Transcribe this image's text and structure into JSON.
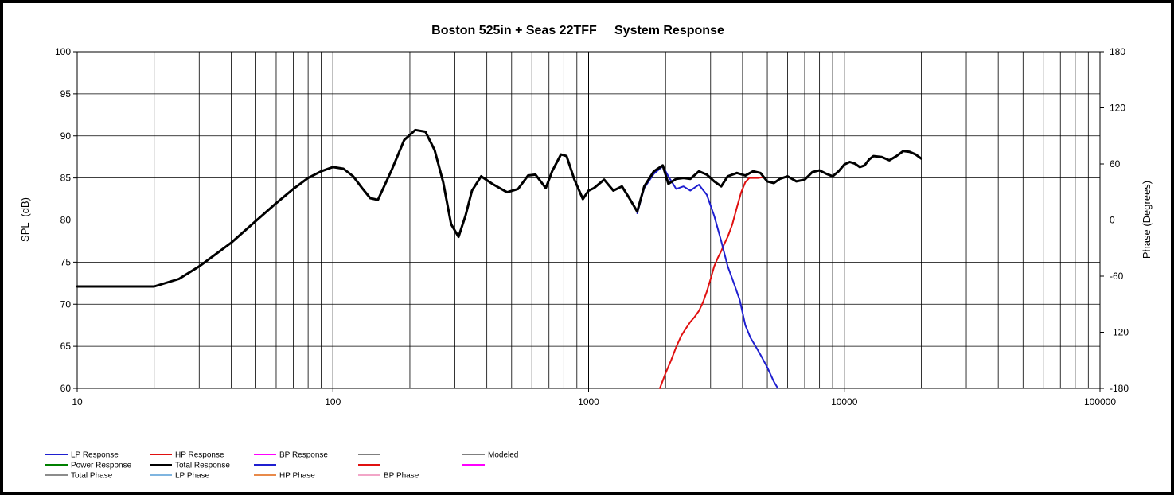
{
  "chart_data": {
    "type": "line",
    "title": "Boston 525in + Seas 22TFF     System Response",
    "xlabel": "",
    "ylabel": "SPL  (dB)",
    "y2label": "Phase (Degrees)",
    "xscale": "log",
    "xlim": [
      10,
      100000
    ],
    "ylim": [
      60,
      100
    ],
    "y2lim": [
      -180,
      180
    ],
    "grid": true,
    "x_ticks": [
      10,
      100,
      1000,
      10000,
      100000
    ],
    "x_tick_labels": [
      "10",
      "100",
      "1000",
      "10000",
      "100000"
    ],
    "y_ticks": [
      60,
      65,
      70,
      75,
      80,
      85,
      90,
      95,
      100
    ],
    "y_tick_labels": [
      "60",
      "65",
      "70",
      "75",
      "80",
      "85",
      "90",
      "95",
      "100"
    ],
    "y2_ticks": [
      -180,
      -120,
      -60,
      0,
      60,
      120,
      180
    ],
    "y2_tick_labels": [
      "-180",
      "-120",
      "-60",
      "0",
      "60",
      "120",
      "180"
    ],
    "legend_position": "bottom",
    "legend": [
      {
        "label": "LP Response",
        "color": "#1f1fd0"
      },
      {
        "label": "HP Response",
        "color": "#e01010"
      },
      {
        "label": "BP Response",
        "color": "#ff00ff"
      },
      {
        "label": "",
        "color": "#7f7f7f"
      },
      {
        "label": "Modeled",
        "color": "#7f7f7f"
      },
      {
        "label": "Power Response",
        "color": "#008000"
      },
      {
        "label": "Total Response",
        "color": "#000000"
      },
      {
        "label": "",
        "color": "#1f1fd0"
      },
      {
        "label": "",
        "color": "#e01010"
      },
      {
        "label": "",
        "color": "#ff00ff"
      },
      {
        "label": "Total Phase",
        "color": "#8c8c8c"
      },
      {
        "label": "LP Phase",
        "color": "#7fb5e0"
      },
      {
        "label": "HP Phase",
        "color": "#e88a4a"
      },
      {
        "label": "BP Phase",
        "color": "#f2a6c8"
      }
    ],
    "series": [
      {
        "name": "Total Response",
        "color": "#000000",
        "x": [
          10,
          20,
          25,
          30,
          40,
          50,
          60,
          70,
          80,
          90,
          100,
          110,
          120,
          130,
          140,
          150,
          170,
          190,
          210,
          230,
          250,
          270,
          290,
          310,
          330,
          350,
          380,
          420,
          480,
          530,
          580,
          620,
          680,
          720,
          780,
          820,
          880,
          950,
          1000,
          1050,
          1150,
          1250,
          1350,
          1450,
          1550,
          1650,
          1800,
          1950,
          2050,
          2200,
          2350,
          2500,
          2700,
          2900,
          3100,
          3300,
          3500,
          3800,
          4100,
          4400,
          4700,
          5000,
          5300,
          5600,
          6000,
          6500,
          7000,
          7500,
          8000,
          8500,
          9000,
          9500,
          10000,
          10500,
          11000,
          11500,
          12000,
          12500,
          13000,
          14000,
          15000,
          16000,
          17000,
          18000,
          19000,
          20000
        ],
        "y": [
          72.1,
          72.1,
          73.0,
          74.5,
          77.3,
          79.9,
          82.0,
          83.7,
          85.0,
          85.8,
          86.3,
          86.1,
          85.2,
          83.8,
          82.6,
          82.4,
          86.0,
          89.5,
          90.7,
          90.5,
          88.3,
          84.5,
          79.5,
          78.0,
          80.5,
          83.5,
          85.2,
          84.3,
          83.3,
          83.7,
          85.3,
          85.4,
          83.8,
          85.8,
          87.8,
          87.6,
          84.8,
          82.5,
          83.5,
          83.8,
          84.8,
          83.5,
          84.0,
          82.5,
          81.0,
          84.0,
          85.8,
          86.5,
          84.3,
          84.9,
          85.0,
          84.9,
          85.8,
          85.4,
          84.6,
          84.0,
          85.2,
          85.6,
          85.3,
          85.8,
          85.6,
          84.6,
          84.4,
          84.9,
          85.2,
          84.6,
          84.8,
          85.7,
          85.9,
          85.5,
          85.2,
          85.8,
          86.6,
          86.9,
          86.7,
          86.3,
          86.5,
          87.2,
          87.6,
          87.5,
          87.1,
          87.6,
          88.2,
          88.1,
          87.8,
          87.3
        ]
      },
      {
        "name": "LP Response",
        "color": "#1f1fd0",
        "x": [
          1550,
          1650,
          1800,
          1950,
          2050,
          2200,
          2350,
          2500,
          2700,
          2900,
          3100,
          3300,
          3500,
          3700,
          3900,
          4100,
          4300,
          4500,
          4700,
          5000,
          5300,
          5500
        ],
        "y": [
          80.8,
          83.8,
          85.5,
          86.4,
          85.2,
          83.7,
          84.0,
          83.5,
          84.2,
          83.0,
          80.5,
          77.5,
          74.5,
          72.5,
          70.5,
          67.5,
          66.0,
          65.0,
          64.0,
          62.5,
          60.8,
          59.9
        ]
      },
      {
        "name": "HP Response",
        "color": "#e01010",
        "x": [
          1900,
          2000,
          2100,
          2200,
          2300,
          2400,
          2500,
          2600,
          2700,
          2800,
          2900,
          3000,
          3100,
          3200,
          3300,
          3400,
          3500,
          3650,
          3800,
          3950,
          4100,
          4250,
          4400,
          4600,
          4800
        ],
        "y": [
          60.0,
          61.8,
          63.3,
          64.9,
          66.2,
          67.1,
          67.9,
          68.5,
          69.2,
          70.2,
          71.5,
          73.0,
          74.5,
          75.5,
          76.3,
          77.2,
          78.0,
          79.5,
          81.5,
          83.3,
          84.5,
          85.0,
          85.0,
          85.0,
          85.1
        ]
      }
    ]
  }
}
